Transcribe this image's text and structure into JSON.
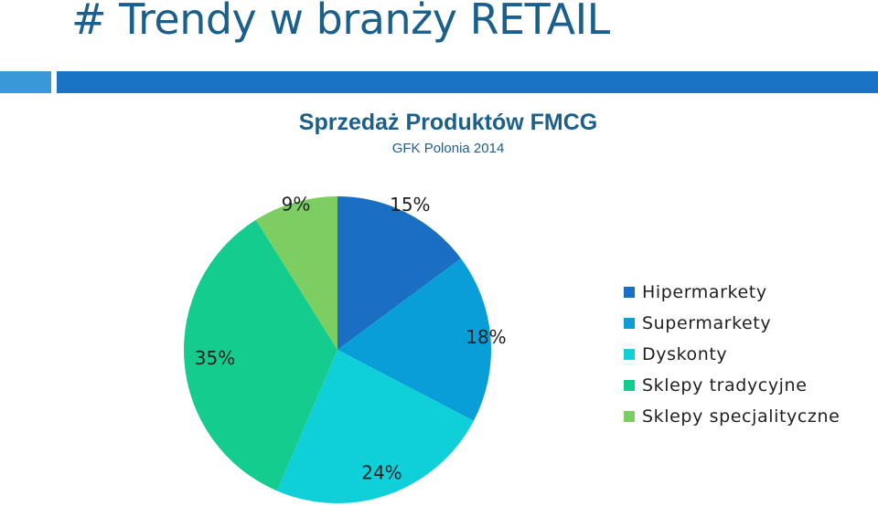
{
  "slide": {
    "title": "# Trendy w branży RETAIL",
    "bar_color_left": "#3a9ad9",
    "bar_color_right": "#1a73c4"
  },
  "chart_data": {
    "type": "pie",
    "title": "Sprzedaż Produktów FMCG",
    "subtitle": "GFK Polonia 2014",
    "legend_position": "right",
    "slices": [
      {
        "name": "Hipermarkety",
        "value": 15,
        "label": "15%",
        "color": "#1a6fc4"
      },
      {
        "name": "Supermarkety",
        "value": 18,
        "label": "18%",
        "color": "#0a9ed8"
      },
      {
        "name": "Dyskonty",
        "value": 24,
        "label": "24%",
        "color": "#0fd0d8"
      },
      {
        "name": "Sklepy tradycyjne",
        "value": 35,
        "label": "35%",
        "color": "#15cc8f"
      },
      {
        "name": "Sklepy specjalityczne",
        "value": 9,
        "label": "9%",
        "color": "#7ccd62"
      }
    ]
  }
}
